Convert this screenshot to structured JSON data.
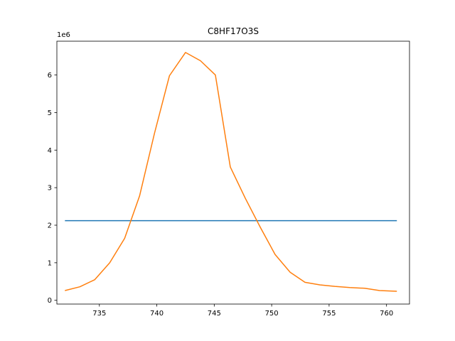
{
  "chart_data": {
    "type": "line",
    "title": "C8HF17O3S",
    "xlabel": "",
    "ylabel": "",
    "y_scale_label": "1e6",
    "xlim": [
      731.3,
      762.0
    ],
    "ylim": [
      -0.1,
      6.9
    ],
    "x_ticks": [
      735,
      740,
      745,
      750,
      755,
      760
    ],
    "y_ticks": [
      0,
      1,
      2,
      3,
      4,
      5,
      6
    ],
    "grid": false,
    "colors": {
      "series_0": "#1f77b4",
      "series_1": "#ff7f0e",
      "axis": "#000000"
    },
    "series": [
      {
        "x": [
          732.0,
          760.9
        ],
        "y": [
          2.12,
          2.12
        ]
      },
      {
        "x": [
          732.0,
          733.3,
          734.6,
          735.9,
          737.2,
          738.5,
          739.8,
          741.1,
          742.5,
          743.8,
          745.1,
          746.4,
          747.7,
          749.0,
          750.3,
          751.6,
          752.9,
          754.2,
          755.5,
          756.8,
          758.1,
          759.4,
          760.9
        ],
        "y": [
          0.26,
          0.36,
          0.55,
          1.0,
          1.65,
          2.78,
          4.45,
          5.98,
          6.6,
          6.38,
          6.0,
          3.55,
          2.72,
          1.95,
          1.22,
          0.75,
          0.48,
          0.41,
          0.37,
          0.34,
          0.32,
          0.26,
          0.24
        ]
      }
    ]
  }
}
